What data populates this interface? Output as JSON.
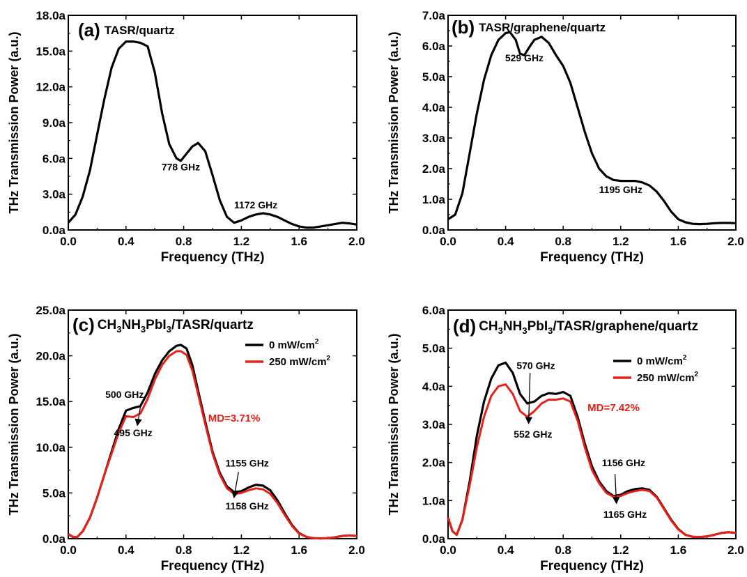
{
  "figure_title": "",
  "chart_data": [
    {
      "panel_label": "(a)",
      "title": "TASR/quartz",
      "type": "line",
      "xlabel": "Frequency (THz)",
      "ylabel": "THz Transmission Power (a.u.)",
      "xlim": [
        0.0,
        2.0
      ],
      "ylim": [
        0.0,
        18.0
      ],
      "xticks": [
        "0.0",
        "0.4",
        "0.8",
        "1.2",
        "1.6",
        "2.0"
      ],
      "yticks": [
        "0.0a",
        "3.0a",
        "6.0a",
        "9.0a",
        "12.0a",
        "15.0a",
        "18.0a"
      ],
      "grid": false,
      "series": [
        {
          "name": "",
          "color": "#000000",
          "x": [
            0.0,
            0.05,
            0.1,
            0.15,
            0.2,
            0.25,
            0.3,
            0.35,
            0.4,
            0.45,
            0.5,
            0.55,
            0.6,
            0.65,
            0.7,
            0.75,
            0.78,
            0.82,
            0.86,
            0.9,
            0.95,
            1.0,
            1.05,
            1.1,
            1.15,
            1.2,
            1.25,
            1.3,
            1.35,
            1.4,
            1.45,
            1.5,
            1.55,
            1.6,
            1.65,
            1.7,
            1.75,
            1.8,
            1.85,
            1.9,
            1.95,
            2.0
          ],
          "y": [
            0.6,
            1.3,
            2.8,
            5.0,
            8.0,
            11.0,
            13.6,
            15.2,
            15.8,
            15.8,
            15.7,
            15.4,
            13.2,
            9.8,
            7.2,
            6.0,
            5.8,
            6.4,
            7.0,
            7.3,
            6.6,
            4.6,
            2.5,
            1.1,
            0.6,
            0.8,
            1.1,
            1.3,
            1.4,
            1.3,
            1.1,
            0.8,
            0.5,
            0.3,
            0.2,
            0.2,
            0.3,
            0.4,
            0.5,
            0.6,
            0.55,
            0.45
          ]
        }
      ],
      "annotations": [
        {
          "text": "778 GHz",
          "x": 0.78,
          "y": 5.0
        },
        {
          "text": "1172 GHz",
          "x": 1.3,
          "y": 1.8
        }
      ],
      "legend": [],
      "md_text": ""
    },
    {
      "panel_label": "(b)",
      "title": "TASR/graphene/quartz",
      "type": "line",
      "xlabel": "Frequency (THz)",
      "ylabel": "THz Transmission Power (a.u.)",
      "xlim": [
        0.0,
        2.0
      ],
      "ylim": [
        0.0,
        7.0
      ],
      "xticks": [
        "0.0",
        "0.4",
        "0.8",
        "1.2",
        "1.6",
        "2.0"
      ],
      "yticks": [
        "0.0a",
        "1.0a",
        "2.0a",
        "3.0a",
        "4.0a",
        "5.0a",
        "6.0a",
        "7.0a"
      ],
      "grid": false,
      "series": [
        {
          "name": "",
          "color": "#000000",
          "x": [
            0.0,
            0.05,
            0.1,
            0.15,
            0.2,
            0.25,
            0.3,
            0.35,
            0.4,
            0.43,
            0.47,
            0.5,
            0.53,
            0.57,
            0.6,
            0.65,
            0.7,
            0.75,
            0.8,
            0.85,
            0.9,
            0.95,
            1.0,
            1.05,
            1.1,
            1.15,
            1.2,
            1.25,
            1.3,
            1.35,
            1.4,
            1.45,
            1.5,
            1.55,
            1.6,
            1.65,
            1.7,
            1.75,
            1.8,
            1.85,
            1.9,
            1.95,
            2.0
          ],
          "y": [
            0.35,
            0.5,
            1.2,
            2.5,
            3.8,
            4.9,
            5.7,
            6.2,
            6.42,
            6.45,
            6.2,
            5.75,
            5.7,
            6.0,
            6.2,
            6.3,
            6.1,
            5.7,
            5.35,
            4.8,
            4.0,
            3.2,
            2.5,
            2.0,
            1.75,
            1.63,
            1.6,
            1.6,
            1.6,
            1.55,
            1.45,
            1.25,
            0.95,
            0.6,
            0.35,
            0.25,
            0.2,
            0.19,
            0.2,
            0.22,
            0.23,
            0.23,
            0.22
          ]
        }
      ],
      "annotations": [
        {
          "text": "529 GHz",
          "x": 0.53,
          "y": 5.5
        },
        {
          "text": "1195 GHz",
          "x": 1.2,
          "y": 1.2
        }
      ],
      "legend": [],
      "md_text": ""
    },
    {
      "panel_label": "(c)",
      "title_parts": [
        "CH",
        "3",
        "NH",
        "3",
        "PbI",
        "3",
        "/TASR/quartz"
      ],
      "type": "line",
      "xlabel": "Frequency (THz)",
      "ylabel": "THz Transmission Power (a.u.)",
      "xlim": [
        0.0,
        2.0
      ],
      "ylim": [
        0.0,
        25.0
      ],
      "xticks": [
        "0.0",
        "0.4",
        "0.8",
        "1.2",
        "1.6",
        "2.0"
      ],
      "yticks": [
        "0.0a",
        "5.0a",
        "10.0a",
        "15.0a",
        "20.0a",
        "25.0a"
      ],
      "grid": false,
      "series": [
        {
          "name": "0 mW/cm",
          "name_sup": "2",
          "color": "#000000",
          "x": [
            0.0,
            0.03,
            0.06,
            0.1,
            0.15,
            0.2,
            0.25,
            0.3,
            0.35,
            0.4,
            0.45,
            0.5,
            0.55,
            0.6,
            0.65,
            0.7,
            0.75,
            0.78,
            0.82,
            0.86,
            0.9,
            0.95,
            1.0,
            1.05,
            1.1,
            1.15,
            1.2,
            1.25,
            1.3,
            1.35,
            1.4,
            1.45,
            1.5,
            1.55,
            1.6,
            1.65,
            1.7,
            1.75,
            1.8,
            1.85,
            1.9,
            1.95,
            2.0
          ],
          "y": [
            0.5,
            0.2,
            0.15,
            0.8,
            2.3,
            4.5,
            7.0,
            9.5,
            12.0,
            14.0,
            14.3,
            14.5,
            16.0,
            18.0,
            19.5,
            20.5,
            21.1,
            21.2,
            20.8,
            19.0,
            16.2,
            12.8,
            9.5,
            7.2,
            5.7,
            5.1,
            5.2,
            5.6,
            5.9,
            5.8,
            5.3,
            4.2,
            2.8,
            1.5,
            0.6,
            0.2,
            0.05,
            0.03,
            0.05,
            0.15,
            0.3,
            0.35,
            0.3
          ]
        },
        {
          "name": "250 mW/cm",
          "name_sup": "2",
          "color": "#e8201a",
          "x": [
            0.0,
            0.03,
            0.06,
            0.1,
            0.15,
            0.2,
            0.25,
            0.3,
            0.35,
            0.4,
            0.45,
            0.5,
            0.55,
            0.6,
            0.65,
            0.7,
            0.75,
            0.78,
            0.82,
            0.86,
            0.9,
            0.95,
            1.0,
            1.05,
            1.1,
            1.15,
            1.2,
            1.25,
            1.3,
            1.35,
            1.4,
            1.45,
            1.5,
            1.55,
            1.6,
            1.65,
            1.7,
            1.75,
            1.8,
            1.85,
            1.9,
            1.95,
            2.0
          ],
          "y": [
            0.5,
            0.2,
            0.15,
            0.8,
            2.3,
            4.5,
            7.0,
            9.3,
            11.6,
            13.4,
            13.3,
            13.7,
            15.3,
            17.4,
            19.0,
            20.0,
            20.5,
            20.5,
            20.1,
            18.4,
            15.8,
            12.5,
            9.3,
            7.0,
            5.5,
            4.9,
            5.0,
            5.3,
            5.5,
            5.4,
            4.9,
            3.9,
            2.6,
            1.4,
            0.55,
            0.2,
            0.05,
            0.03,
            0.05,
            0.15,
            0.3,
            0.35,
            0.3
          ]
        }
      ],
      "annotations": [
        {
          "text": "500 GHz",
          "x": 0.39,
          "y": 15.4
        },
        {
          "text": "495 GHz",
          "x": 0.45,
          "y": 11.2
        },
        {
          "text": "1155 GHz",
          "x": 1.24,
          "y": 7.9
        },
        {
          "text": "1158 GHz",
          "x": 1.24,
          "y": 3.2
        }
      ],
      "arrows": [
        {
          "x1": 0.5,
          "y1": 14.4,
          "x2": 0.48,
          "y2": 12.5
        },
        {
          "x1": 1.18,
          "y1": 7.3,
          "x2": 1.15,
          "y2": 4.6
        }
      ],
      "md_text": "MD=3.71%",
      "md_pos": [
        1.15,
        12.8
      ]
    },
    {
      "panel_label": "(d)",
      "title_parts": [
        "CH",
        "3",
        "NH",
        "3",
        "PbI",
        "3",
        "/TASR/graphene/quartz"
      ],
      "type": "line",
      "xlabel": "Frequency (THz)",
      "ylabel": "THz Transmission Power (a.u.)",
      "xlim": [
        0.0,
        2.0
      ],
      "ylim": [
        0.0,
        6.0
      ],
      "xticks": [
        "0.0",
        "0.4",
        "0.8",
        "1.2",
        "1.6",
        "2.0"
      ],
      "yticks": [
        "0.0a",
        "1.0a",
        "2.0a",
        "3.0a",
        "4.0a",
        "5.0a",
        "6.0a"
      ],
      "grid": false,
      "series": [
        {
          "name": "0 mW/cm",
          "name_sup": "2",
          "color": "#000000",
          "x": [
            0.0,
            0.03,
            0.06,
            0.1,
            0.15,
            0.2,
            0.25,
            0.3,
            0.35,
            0.4,
            0.45,
            0.5,
            0.55,
            0.6,
            0.65,
            0.7,
            0.75,
            0.8,
            0.85,
            0.9,
            0.95,
            1.0,
            1.05,
            1.1,
            1.15,
            1.2,
            1.25,
            1.3,
            1.35,
            1.4,
            1.45,
            1.5,
            1.55,
            1.6,
            1.65,
            1.7,
            1.75,
            1.8,
            1.85,
            1.9,
            1.95,
            2.0
          ],
          "y": [
            0.55,
            0.2,
            0.1,
            0.5,
            1.5,
            2.7,
            3.6,
            4.2,
            4.55,
            4.62,
            4.35,
            3.8,
            3.55,
            3.6,
            3.75,
            3.82,
            3.8,
            3.85,
            3.75,
            3.2,
            2.5,
            1.9,
            1.5,
            1.25,
            1.12,
            1.15,
            1.25,
            1.3,
            1.32,
            1.28,
            1.1,
            0.8,
            0.5,
            0.25,
            0.1,
            0.05,
            0.04,
            0.06,
            0.1,
            0.15,
            0.17,
            0.15
          ]
        },
        {
          "name": "250 mW/cm",
          "name_sup": "2",
          "color": "#e8201a",
          "x": [
            0.0,
            0.03,
            0.06,
            0.1,
            0.15,
            0.2,
            0.25,
            0.3,
            0.35,
            0.4,
            0.45,
            0.5,
            0.55,
            0.6,
            0.65,
            0.7,
            0.75,
            0.8,
            0.85,
            0.9,
            0.95,
            1.0,
            1.05,
            1.1,
            1.15,
            1.2,
            1.25,
            1.3,
            1.35,
            1.4,
            1.45,
            1.5,
            1.55,
            1.6,
            1.65,
            1.7,
            1.75,
            1.8,
            1.85,
            1.9,
            1.95,
            2.0
          ],
          "y": [
            0.55,
            0.2,
            0.1,
            0.5,
            1.4,
            2.4,
            3.2,
            3.75,
            4.0,
            4.05,
            3.8,
            3.35,
            3.2,
            3.35,
            3.55,
            3.65,
            3.65,
            3.68,
            3.6,
            3.1,
            2.4,
            1.8,
            1.45,
            1.2,
            1.1,
            1.12,
            1.2,
            1.25,
            1.28,
            1.25,
            1.08,
            0.78,
            0.48,
            0.24,
            0.1,
            0.05,
            0.04,
            0.06,
            0.1,
            0.15,
            0.17,
            0.15
          ]
        }
      ],
      "annotations": [
        {
          "text": "570 GHz",
          "x": 0.61,
          "y": 4.45
        },
        {
          "text": "552 GHz",
          "x": 0.59,
          "y": 2.65
        },
        {
          "text": "1156 GHz",
          "x": 1.22,
          "y": 1.9
        },
        {
          "text": "1165 GHz",
          "x": 1.23,
          "y": 0.55
        }
      ],
      "arrows": [
        {
          "x1": 0.57,
          "y1": 4.35,
          "x2": 0.56,
          "y2": 3.05
        },
        {
          "x1": 1.16,
          "y1": 1.7,
          "x2": 1.17,
          "y2": 0.95
        }
      ],
      "md_text": "MD=7.42%",
      "md_pos": [
        1.15,
        3.35
      ]
    }
  ]
}
